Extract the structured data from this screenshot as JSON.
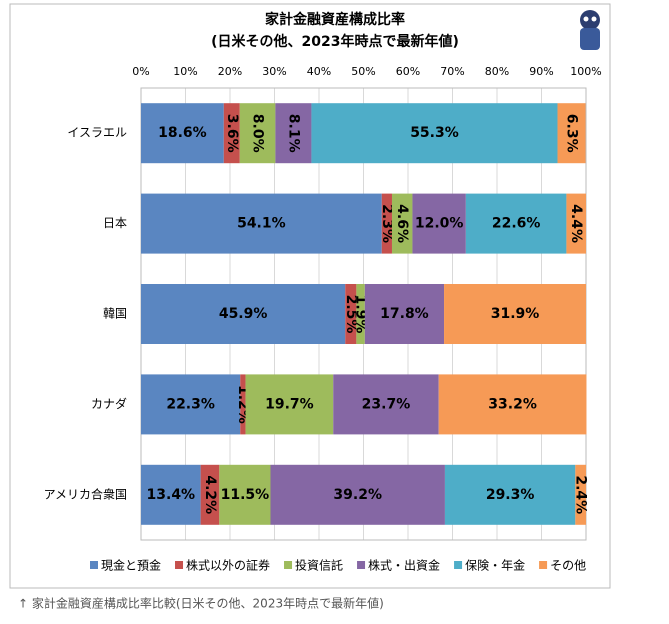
{
  "chart_data": {
    "type": "stacked-bar-horizontal",
    "title": "家計金融資産構成比率",
    "subtitle": "(日米その他、2023年時点で最新年値)",
    "caption": "↑ 家計金融資産構成比率比較(日米その他、2023年時点で最新年値)",
    "categories": [
      "イスラエル",
      "日本",
      "韓国",
      "カナダ",
      "アメリカ合衆国"
    ],
    "xlim": [
      0,
      100
    ],
    "xticks": [
      {
        "value": 0,
        "label": "0%"
      },
      {
        "value": 10,
        "label": "10%"
      },
      {
        "value": 20,
        "label": "20%"
      },
      {
        "value": 30,
        "label": "30%"
      },
      {
        "value": 40,
        "label": "40%"
      },
      {
        "value": 50,
        "label": "50%"
      },
      {
        "value": 60,
        "label": "60%"
      },
      {
        "value": 70,
        "label": "70%"
      },
      {
        "value": 80,
        "label": "80%"
      },
      {
        "value": 90,
        "label": "90%"
      },
      {
        "value": 100,
        "label": "100%"
      }
    ],
    "grid": true,
    "legend": "bottom",
    "series": [
      {
        "name": "現金と預金",
        "color": "#5a86c1",
        "values": [
          18.6,
          54.1,
          45.9,
          22.3,
          13.4
        ],
        "value_labels": [
          "18.6%",
          "54.1%",
          "45.9%",
          "22.3%",
          "13.4%"
        ]
      },
      {
        "name": "株式以外の証券",
        "color": "#c5504d",
        "values": [
          3.6,
          2.3,
          2.5,
          1.2,
          4.2
        ],
        "value_labels": [
          "3.6%",
          "2.3%",
          "2.5%",
          "1.2%",
          "4.2%"
        ]
      },
      {
        "name": "投資信託",
        "color": "#9ebb5c",
        "values": [
          8.0,
          4.6,
          1.9,
          19.7,
          11.5
        ],
        "value_labels": [
          "8.0%",
          "4.6%",
          "1.9%",
          "19.7%",
          "11.5%"
        ]
      },
      {
        "name": "株式・出資金",
        "color": "#8567a4",
        "values": [
          8.1,
          12.0,
          17.8,
          23.7,
          39.2
        ],
        "value_labels": [
          "8.1%",
          "12.0%",
          "17.8%",
          "23.7%",
          "39.2%"
        ]
      },
      {
        "name": "保険・年金",
        "color": "#4eadc8",
        "values": [
          55.3,
          22.6,
          null,
          null,
          29.3
        ],
        "value_labels": [
          "55.3%",
          "22.6%",
          null,
          null,
          "29.3%"
        ]
      },
      {
        "name": "その他",
        "color": "#f69a56",
        "values": [
          6.3,
          4.4,
          31.9,
          33.2,
          2.4
        ],
        "value_labels": [
          "6.3%",
          "4.4%",
          "31.9%",
          "33.2%",
          "2.4%"
        ]
      }
    ]
  }
}
